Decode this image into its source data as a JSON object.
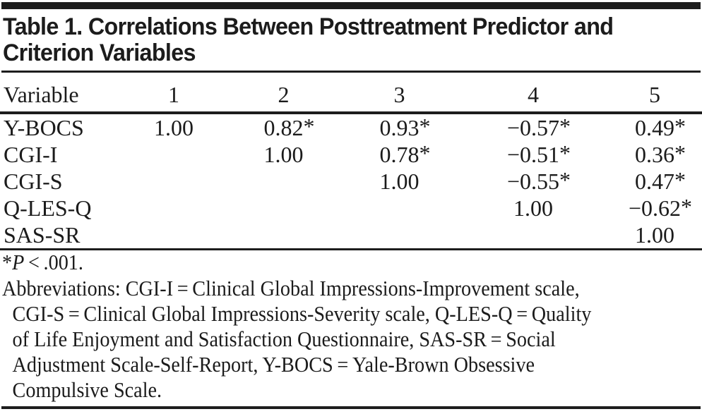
{
  "page": {
    "title": "Table 1. Correlations Between Posttreatment Predictor and Criterion Variables"
  },
  "colors": {
    "text": "#1b1b1b",
    "rules": "#1d1d1d",
    "background": "#ffffff"
  },
  "table": {
    "columns": [
      "Variable",
      "1",
      "2",
      "3",
      "4",
      "5"
    ],
    "rows": [
      {
        "label": "Y-BOCS",
        "values": [
          "1.00",
          "0.82*",
          "0.93*",
          "−0.57*",
          "0.49*"
        ]
      },
      {
        "label": "CGI-I",
        "values": [
          "",
          "1.00",
          "0.78*",
          "−0.51*",
          "0.36*"
        ]
      },
      {
        "label": "CGI-S",
        "values": [
          "",
          "",
          "1.00",
          "−0.55*",
          "0.47*"
        ]
      },
      {
        "label": "Q-LES-Q",
        "values": [
          "",
          "",
          "",
          "1.00",
          "−0.62*"
        ]
      },
      {
        "label": "SAS-SR",
        "values": [
          "",
          "",
          "",
          "",
          "1.00"
        ]
      }
    ]
  },
  "footnotes": {
    "significance": {
      "star": "*",
      "p": "P",
      "rest": " < .001."
    },
    "abbreviations_lines": [
      "Abbreviations: CGI-I = Clinical Global Impressions-Improvement scale,",
      "CGI-S = Clinical Global Impressions-Severity scale, Q-LES-Q = Quality",
      "of Life Enjoyment and Satisfaction Questionnaire, SAS-SR = Social",
      "Adjustment Scale-Self-Report, Y-BOCS = Yale-Brown Obsessive",
      "Compulsive Scale."
    ]
  },
  "chart_data": {
    "type": "table",
    "title": "Table 1. Correlations Between Posttreatment Predictor and Criterion Variables",
    "columns": [
      "Variable",
      "1",
      "2",
      "3",
      "4",
      "5"
    ],
    "rows": [
      [
        "Y-BOCS",
        "1.00",
        "0.82*",
        "0.93*",
        "−0.57*",
        "0.49*"
      ],
      [
        "CGI-I",
        "",
        "1.00",
        "0.78*",
        "−0.51*",
        "0.36*"
      ],
      [
        "CGI-S",
        "",
        "",
        "1.00",
        "−0.55*",
        "0.47*"
      ],
      [
        "Q-LES-Q",
        "",
        "",
        "",
        "1.00",
        "−0.62*"
      ],
      [
        "SAS-SR",
        "",
        "",
        "",
        "",
        "1.00"
      ]
    ],
    "footnotes": [
      "*P < .001.",
      "Abbreviations: CGI-I = Clinical Global Impressions-Improvement scale, CGI-S = Clinical Global Impressions-Severity scale, Q-LES-Q = Quality of Life Enjoyment and Satisfaction Questionnaire, SAS-SR = Social Adjustment Scale-Self-Report, Y-BOCS = Yale-Brown Obsessive Compulsive Scale."
    ]
  }
}
